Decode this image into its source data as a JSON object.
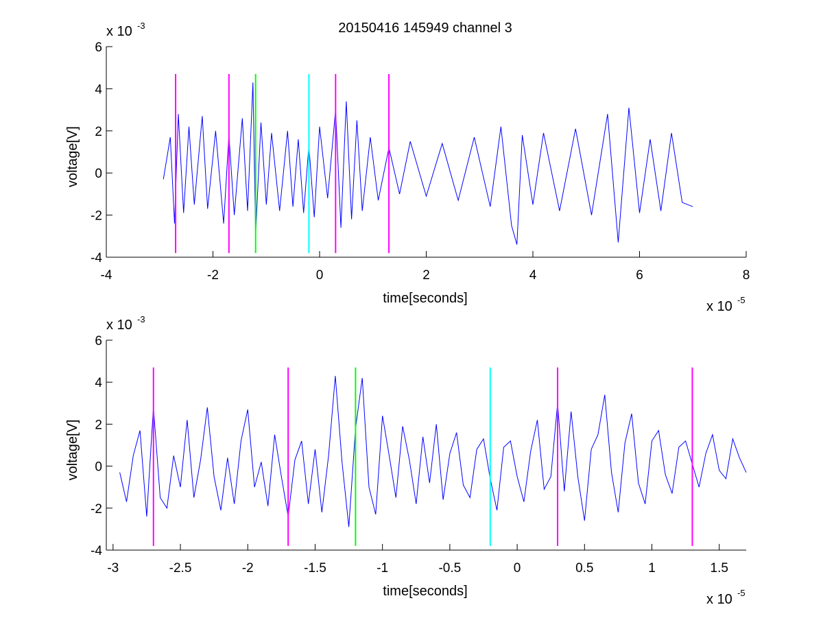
{
  "figure": {
    "title": "20150416 145949 channel 3"
  },
  "chart_data": [
    {
      "type": "line",
      "title": "20150416 145949 channel 3",
      "xlabel": "time[seconds]",
      "ylabel": "voltage[V]",
      "x_multiplier_label": "x 10",
      "x_multiplier_exponent": "-5",
      "y_multiplier_label": "x 10",
      "y_multiplier_exponent": "-3",
      "x_scale_factor": 1e-05,
      "y_scale_factor": 0.001,
      "xlim": [
        -4,
        8
      ],
      "ylim": [
        -4,
        6
      ],
      "xticks": [
        -4,
        -2,
        0,
        2,
        4,
        6,
        8
      ],
      "xtick_labels": [
        "-4",
        "-2",
        "0",
        "2",
        "4",
        "6",
        "8"
      ],
      "yticks": [
        -4,
        -2,
        0,
        2,
        4,
        6
      ],
      "ytick_labels": [
        "-4",
        "-2",
        "0",
        "2",
        "4",
        "6"
      ],
      "grid": false,
      "signal_color": "#0000ff",
      "signal": {
        "x": [
          -2.93,
          -2.8,
          -2.72,
          -2.65,
          -2.55,
          -2.45,
          -2.35,
          -2.2,
          -2.1,
          -1.95,
          -1.8,
          -1.7,
          -1.6,
          -1.45,
          -1.35,
          -1.25,
          -1.2,
          -1.1,
          -1.0,
          -0.9,
          -0.75,
          -0.6,
          -0.5,
          -0.4,
          -0.3,
          -0.2,
          -0.1,
          0.0,
          0.15,
          0.3,
          0.4,
          0.5,
          0.6,
          0.7,
          0.8,
          0.95,
          1.1,
          1.3,
          1.5,
          1.7,
          2.0,
          2.3,
          2.6,
          2.9,
          3.2,
          3.4,
          3.6,
          3.7,
          3.8,
          4.0,
          4.2,
          4.5,
          4.8,
          5.1,
          5.4,
          5.6,
          5.8,
          6.0,
          6.2,
          6.4,
          6.6,
          6.8,
          7.0
        ],
        "y": [
          -0.3,
          1.7,
          -2.4,
          2.8,
          -1.9,
          2.2,
          -1.5,
          2.7,
          -1.7,
          2.0,
          -2.4,
          1.8,
          -2.0,
          2.6,
          -1.8,
          4.3,
          -2.9,
          2.4,
          -1.5,
          1.9,
          -1.8,
          2.0,
          -1.6,
          1.6,
          -1.9,
          1.3,
          -2.1,
          2.2,
          -1.2,
          3.0,
          -2.6,
          3.4,
          -2.2,
          2.5,
          -1.8,
          1.7,
          -1.3,
          1.2,
          -1.0,
          1.5,
          -1.1,
          1.4,
          -1.3,
          1.7,
          -1.6,
          2.2,
          -2.5,
          -3.4,
          1.8,
          -1.5,
          1.9,
          -1.8,
          2.1,
          -2.0,
          2.8,
          -3.3,
          3.1,
          -1.9,
          1.6,
          -1.8,
          1.9,
          -1.4,
          -1.6
        ]
      },
      "markers": [
        {
          "x": -2.7,
          "color": "#ff00ff"
        },
        {
          "x": -1.7,
          "color": "#ff00ff"
        },
        {
          "x": -1.2,
          "color": "#00ff00"
        },
        {
          "x": -0.2,
          "color": "#00ffff"
        },
        {
          "x": 0.3,
          "color": "#ff00ff"
        },
        {
          "x": 1.3,
          "color": "#ff00ff"
        }
      ],
      "marker_span": [
        -3.8,
        4.7
      ]
    },
    {
      "type": "line",
      "title": "",
      "xlabel": "time[seconds]",
      "ylabel": "voltage[V]",
      "x_multiplier_label": "x 10",
      "x_multiplier_exponent": "-5",
      "y_multiplier_label": "x 10",
      "y_multiplier_exponent": "-3",
      "x_scale_factor": 1e-05,
      "y_scale_factor": 0.001,
      "xlim": [
        -3.05,
        1.7
      ],
      "ylim": [
        -4,
        6
      ],
      "xticks": [
        -3,
        -2.5,
        -2,
        -1.5,
        -1,
        -0.5,
        0,
        0.5,
        1,
        1.5
      ],
      "xtick_labels": [
        "-3",
        "-2.5",
        "-2",
        "-1.5",
        "-1",
        "-0.5",
        "0",
        "0.5",
        "1",
        "1.5"
      ],
      "yticks": [
        -4,
        -2,
        0,
        2,
        4,
        6
      ],
      "ytick_labels": [
        "-4",
        "-2",
        "0",
        "2",
        "4",
        "6"
      ],
      "grid": false,
      "signal_color": "#0000ff",
      "signal": {
        "x": [
          -2.95,
          -2.9,
          -2.85,
          -2.8,
          -2.75,
          -2.7,
          -2.65,
          -2.6,
          -2.55,
          -2.5,
          -2.45,
          -2.4,
          -2.35,
          -2.3,
          -2.25,
          -2.2,
          -2.15,
          -2.1,
          -2.05,
          -2.0,
          -1.95,
          -1.9,
          -1.85,
          -1.8,
          -1.75,
          -1.7,
          -1.65,
          -1.6,
          -1.55,
          -1.5,
          -1.45,
          -1.4,
          -1.35,
          -1.3,
          -1.25,
          -1.2,
          -1.15,
          -1.1,
          -1.05,
          -1.0,
          -0.95,
          -0.9,
          -0.85,
          -0.8,
          -0.75,
          -0.7,
          -0.65,
          -0.6,
          -0.55,
          -0.5,
          -0.45,
          -0.4,
          -0.35,
          -0.3,
          -0.25,
          -0.2,
          -0.15,
          -0.1,
          -0.05,
          0.0,
          0.05,
          0.1,
          0.15,
          0.2,
          0.25,
          0.3,
          0.35,
          0.4,
          0.45,
          0.5,
          0.55,
          0.6,
          0.65,
          0.7,
          0.75,
          0.8,
          0.85,
          0.9,
          0.95,
          1.0,
          1.05,
          1.1,
          1.15,
          1.2,
          1.25,
          1.3,
          1.35,
          1.4,
          1.45,
          1.5,
          1.55,
          1.6,
          1.65,
          1.7
        ],
        "y": [
          -0.3,
          -1.7,
          0.5,
          1.7,
          -2.4,
          2.8,
          -1.5,
          -2.0,
          0.5,
          -1.0,
          2.2,
          -1.5,
          0.3,
          2.8,
          -0.5,
          -2.1,
          0.4,
          -1.8,
          1.2,
          2.7,
          -1.0,
          0.2,
          -1.9,
          1.5,
          -0.5,
          -2.4,
          0.3,
          1.2,
          -1.8,
          0.8,
          -2.2,
          0.5,
          4.3,
          0.2,
          -2.9,
          1.8,
          4.2,
          -1.0,
          -2.3,
          2.4,
          0.5,
          -1.5,
          1.9,
          0.3,
          -1.8,
          1.4,
          -0.8,
          2.0,
          -1.6,
          0.6,
          1.6,
          -0.9,
          -1.5,
          0.8,
          1.3,
          -0.6,
          -2.1,
          0.9,
          1.2,
          -0.5,
          -1.7,
          0.7,
          2.2,
          -1.1,
          -0.5,
          3.0,
          -1.2,
          2.6,
          -0.5,
          -2.6,
          0.8,
          1.5,
          3.4,
          -0.3,
          -2.2,
          1.1,
          2.5,
          -0.8,
          -1.8,
          1.2,
          1.7,
          -0.4,
          -1.3,
          0.9,
          1.2,
          0.1,
          -1.0,
          0.6,
          1.5,
          -0.2,
          -0.6,
          1.3,
          0.4,
          -0.3
        ]
      },
      "markers": [
        {
          "x": -2.7,
          "color": "#ff00ff"
        },
        {
          "x": -1.7,
          "color": "#ff00ff"
        },
        {
          "x": -1.2,
          "color": "#00ff00"
        },
        {
          "x": -0.2,
          "color": "#00ffff"
        },
        {
          "x": 0.3,
          "color": "#ff00ff"
        },
        {
          "x": 1.3,
          "color": "#ff00ff"
        }
      ],
      "marker_span": [
        -3.8,
        4.7
      ]
    }
  ]
}
